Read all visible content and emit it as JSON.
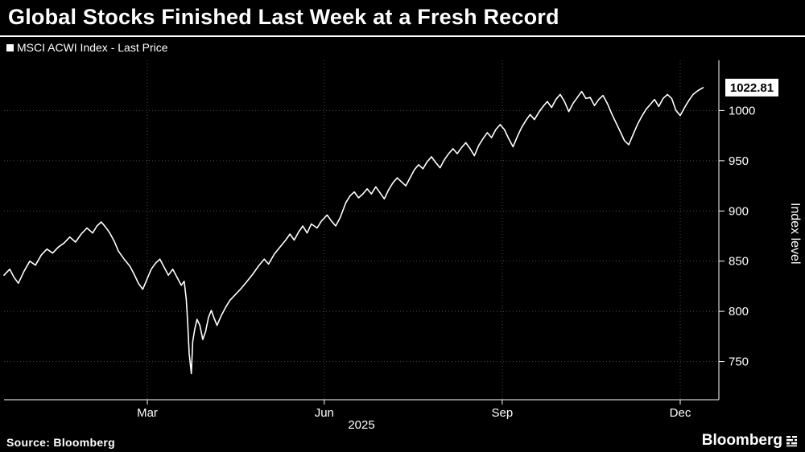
{
  "header": {
    "title": "Global Stocks Finished Last Week at a Fresh Record"
  },
  "legend": {
    "label": "MSCI ACWI Index - Last Price"
  },
  "footer": {
    "source_label": "Source:  Bloomberg",
    "brand": "Bloomberg"
  },
  "chart_data": {
    "type": "line",
    "title": "Global Stocks Finished Last Week at a Fresh Record",
    "series_name": "MSCI ACWI Index - Last Price",
    "xlabel": "2025",
    "ylabel": "Index level",
    "ylim": [
      712,
      1050
    ],
    "yticks": [
      750,
      800,
      850,
      900,
      950,
      1000
    ],
    "xticks": [
      {
        "label": "Mar",
        "f": 0.2005
      },
      {
        "label": "Jun",
        "f": 0.448
      },
      {
        "label": "Sep",
        "f": 0.697
      },
      {
        "label": "Dec",
        "f": 0.946
      }
    ],
    "grid": "dotted",
    "legend_position": "top-left",
    "line_color": "#ffffff",
    "grid_color": "#4a4a4a",
    "last_price": 1022.81,
    "last_price_label": "1022.81",
    "points": [
      [
        0.0,
        836
      ],
      [
        0.008,
        842
      ],
      [
        0.014,
        834
      ],
      [
        0.02,
        828
      ],
      [
        0.028,
        840
      ],
      [
        0.036,
        850
      ],
      [
        0.044,
        846
      ],
      [
        0.052,
        856
      ],
      [
        0.06,
        862
      ],
      [
        0.068,
        858
      ],
      [
        0.076,
        864
      ],
      [
        0.084,
        868
      ],
      [
        0.092,
        874
      ],
      [
        0.1,
        869
      ],
      [
        0.108,
        877
      ],
      [
        0.116,
        883
      ],
      [
        0.124,
        878
      ],
      [
        0.13,
        885
      ],
      [
        0.136,
        889
      ],
      [
        0.142,
        884
      ],
      [
        0.148,
        878
      ],
      [
        0.154,
        870
      ],
      [
        0.16,
        860
      ],
      [
        0.168,
        852
      ],
      [
        0.176,
        845
      ],
      [
        0.182,
        837
      ],
      [
        0.188,
        828
      ],
      [
        0.194,
        822
      ],
      [
        0.2,
        832
      ],
      [
        0.206,
        842
      ],
      [
        0.212,
        848
      ],
      [
        0.218,
        852
      ],
      [
        0.224,
        844
      ],
      [
        0.23,
        836
      ],
      [
        0.236,
        842
      ],
      [
        0.242,
        834
      ],
      [
        0.248,
        826
      ],
      [
        0.252,
        830
      ],
      [
        0.255,
        812
      ],
      [
        0.257,
        788
      ],
      [
        0.259,
        758
      ],
      [
        0.262,
        738
      ],
      [
        0.264,
        770
      ],
      [
        0.267,
        783
      ],
      [
        0.27,
        792
      ],
      [
        0.274,
        786
      ],
      [
        0.278,
        772
      ],
      [
        0.282,
        780
      ],
      [
        0.286,
        794
      ],
      [
        0.29,
        801
      ],
      [
        0.294,
        793
      ],
      [
        0.298,
        786
      ],
      [
        0.304,
        796
      ],
      [
        0.31,
        804
      ],
      [
        0.316,
        811
      ],
      [
        0.324,
        817
      ],
      [
        0.332,
        823
      ],
      [
        0.34,
        830
      ],
      [
        0.348,
        837
      ],
      [
        0.356,
        845
      ],
      [
        0.364,
        852
      ],
      [
        0.37,
        847
      ],
      [
        0.378,
        857
      ],
      [
        0.386,
        864
      ],
      [
        0.394,
        871
      ],
      [
        0.4,
        877
      ],
      [
        0.406,
        871
      ],
      [
        0.412,
        879
      ],
      [
        0.418,
        885
      ],
      [
        0.424,
        878
      ],
      [
        0.43,
        887
      ],
      [
        0.438,
        883
      ],
      [
        0.444,
        890
      ],
      [
        0.452,
        896
      ],
      [
        0.458,
        890
      ],
      [
        0.464,
        885
      ],
      [
        0.47,
        893
      ],
      [
        0.478,
        908
      ],
      [
        0.484,
        915
      ],
      [
        0.49,
        919
      ],
      [
        0.496,
        913
      ],
      [
        0.502,
        917
      ],
      [
        0.508,
        922
      ],
      [
        0.514,
        917
      ],
      [
        0.52,
        924
      ],
      [
        0.526,
        918
      ],
      [
        0.532,
        912
      ],
      [
        0.538,
        921
      ],
      [
        0.544,
        928
      ],
      [
        0.55,
        933
      ],
      [
        0.556,
        929
      ],
      [
        0.562,
        925
      ],
      [
        0.568,
        933
      ],
      [
        0.574,
        941
      ],
      [
        0.58,
        946
      ],
      [
        0.586,
        942
      ],
      [
        0.592,
        949
      ],
      [
        0.598,
        954
      ],
      [
        0.604,
        948
      ],
      [
        0.61,
        943
      ],
      [
        0.616,
        951
      ],
      [
        0.622,
        957
      ],
      [
        0.628,
        962
      ],
      [
        0.634,
        957
      ],
      [
        0.64,
        963
      ],
      [
        0.646,
        968
      ],
      [
        0.652,
        962
      ],
      [
        0.658,
        955
      ],
      [
        0.664,
        965
      ],
      [
        0.67,
        972
      ],
      [
        0.676,
        978
      ],
      [
        0.682,
        973
      ],
      [
        0.688,
        981
      ],
      [
        0.694,
        986
      ],
      [
        0.7,
        981
      ],
      [
        0.706,
        972
      ],
      [
        0.712,
        964
      ],
      [
        0.718,
        974
      ],
      [
        0.724,
        983
      ],
      [
        0.73,
        990
      ],
      [
        0.736,
        996
      ],
      [
        0.742,
        991
      ],
      [
        0.748,
        998
      ],
      [
        0.754,
        1004
      ],
      [
        0.76,
        1009
      ],
      [
        0.766,
        1003
      ],
      [
        0.772,
        1011
      ],
      [
        0.778,
        1016
      ],
      [
        0.784,
        1009
      ],
      [
        0.79,
        999
      ],
      [
        0.796,
        1007
      ],
      [
        0.802,
        1013
      ],
      [
        0.808,
        1019
      ],
      [
        0.814,
        1012
      ],
      [
        0.82,
        1013
      ],
      [
        0.826,
        1005
      ],
      [
        0.832,
        1011
      ],
      [
        0.838,
        1015
      ],
      [
        0.844,
        1007
      ],
      [
        0.85,
        997
      ],
      [
        0.856,
        988
      ],
      [
        0.862,
        979
      ],
      [
        0.868,
        970
      ],
      [
        0.874,
        966
      ],
      [
        0.88,
        976
      ],
      [
        0.886,
        986
      ],
      [
        0.892,
        994
      ],
      [
        0.898,
        1001
      ],
      [
        0.904,
        1006
      ],
      [
        0.91,
        1011
      ],
      [
        0.916,
        1004
      ],
      [
        0.922,
        1012
      ],
      [
        0.928,
        1016
      ],
      [
        0.934,
        1012
      ],
      [
        0.94,
        1000
      ],
      [
        0.946,
        995
      ],
      [
        0.952,
        1003
      ],
      [
        0.958,
        1010
      ],
      [
        0.964,
        1016
      ],
      [
        0.971,
        1020
      ],
      [
        0.978,
        1022.81
      ]
    ]
  }
}
